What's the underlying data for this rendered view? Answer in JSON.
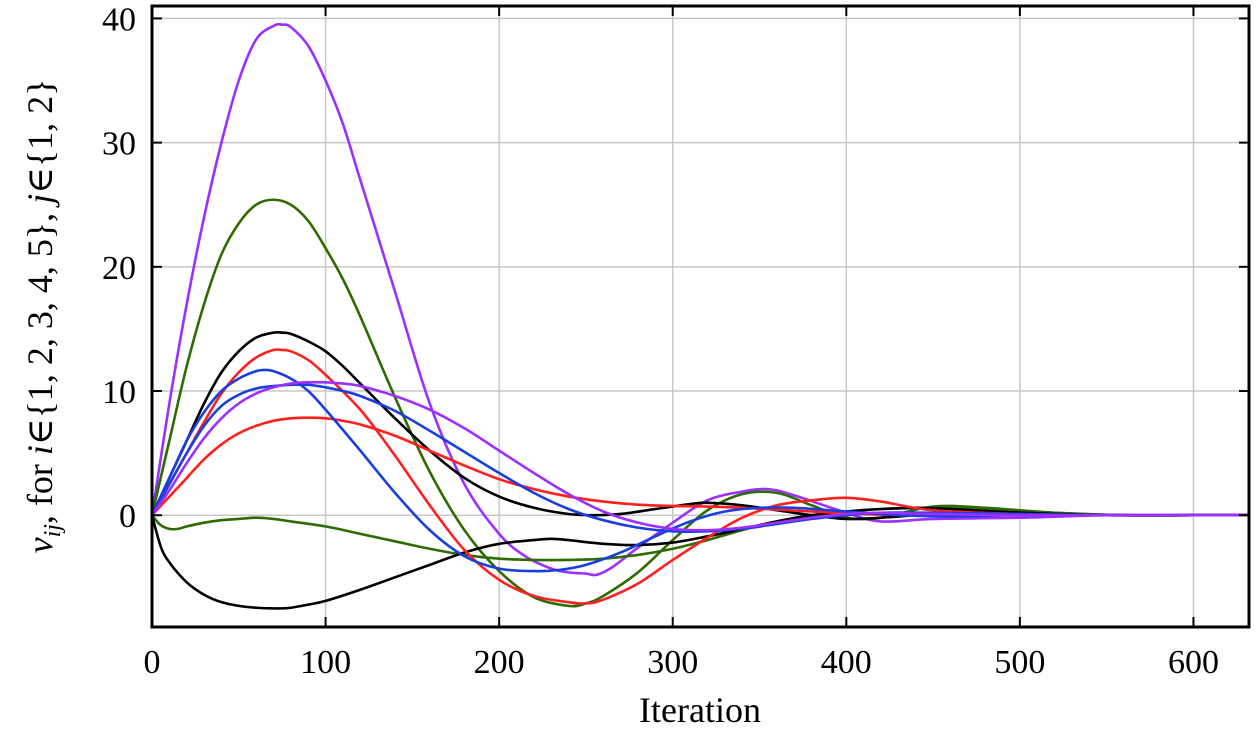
{
  "chart_data": {
    "type": "line",
    "xlabel": "Iteration",
    "ylabel_parts": {
      "v": "v",
      "sub": "ij",
      "text1": ", for ",
      "i": "i",
      "text2": "∈{1, 2, 3, 4, 5}, ",
      "j": "j",
      "text3": "∈{1, 2}"
    },
    "xlim": [
      0,
      632
    ],
    "ylim": [
      -9,
      41
    ],
    "xticks": [
      0,
      100,
      200,
      300,
      400,
      500,
      600
    ],
    "yticks": [
      0,
      10,
      20,
      30,
      40
    ],
    "grid": true,
    "series": [
      {
        "color": "#9b30ff",
        "x": [
          0,
          10,
          20,
          30,
          40,
          50,
          60,
          70,
          75,
          80,
          90,
          100,
          110,
          120,
          140,
          160,
          180,
          200,
          215,
          230,
          240,
          250,
          256,
          265,
          280,
          300,
          320,
          340,
          355,
          370,
          400,
          420,
          450,
          500,
          550,
          600,
          632
        ],
        "y": [
          0,
          9,
          17,
          24,
          30,
          35,
          38.3,
          39.4,
          39.5,
          39.3,
          37.8,
          35,
          31.5,
          27,
          18,
          9,
          2.5,
          -1.5,
          -3.3,
          -4.3,
          -4.6,
          -4.7,
          -4.8,
          -4.2,
          -2.6,
          -0.6,
          1.2,
          1.9,
          2.1,
          1.6,
          0.2,
          -0.5,
          -0.3,
          -0.2,
          0,
          0,
          0
        ]
      },
      {
        "color": "#2e6b00",
        "x": [
          0,
          10,
          20,
          30,
          40,
          50,
          60,
          70,
          80,
          90,
          100,
          110,
          120,
          140,
          160,
          180,
          200,
          220,
          240,
          250,
          260,
          280,
          300,
          320,
          340,
          360,
          380,
          400,
          420,
          450,
          480,
          520,
          560,
          600,
          632
        ],
        "y": [
          0,
          6,
          12,
          17,
          21,
          23.5,
          25,
          25.4,
          25,
          23.7,
          21.5,
          19,
          16,
          9.5,
          3.5,
          -1.2,
          -4.5,
          -6.6,
          -7.3,
          -7.1,
          -6.5,
          -4.6,
          -2,
          0.4,
          1.7,
          1.8,
          0.8,
          -0.2,
          -0.2,
          0.7,
          0.6,
          0.2,
          0,
          0,
          0
        ]
      },
      {
        "color": "#2e6b00",
        "x": [
          0,
          5,
          10,
          15,
          20,
          30,
          40,
          50,
          60,
          70,
          80,
          100,
          120,
          140,
          160,
          180,
          200,
          220,
          240,
          260,
          280,
          300,
          320,
          340,
          360,
          380,
          400,
          420,
          450,
          480,
          520,
          560,
          600,
          632
        ],
        "y": [
          0,
          -0.8,
          -1.1,
          -1.1,
          -0.9,
          -0.6,
          -0.4,
          -0.3,
          -0.2,
          -0.3,
          -0.5,
          -0.9,
          -1.5,
          -2.1,
          -2.7,
          -3.2,
          -3.5,
          -3.6,
          -3.6,
          -3.5,
          -3.2,
          -2.7,
          -2,
          -1.2,
          -0.5,
          0,
          0.3,
          0.5,
          0.6,
          0.5,
          0.2,
          0,
          0,
          0
        ]
      },
      {
        "color": "#000000",
        "x": [
          0,
          10,
          20,
          30,
          40,
          50,
          60,
          70,
          75,
          80,
          90,
          100,
          110,
          120,
          140,
          160,
          180,
          200,
          220,
          240,
          255,
          270,
          290,
          310,
          320,
          340,
          360,
          380,
          400,
          420,
          450,
          480,
          520,
          560,
          600,
          632
        ],
        "y": [
          0,
          3,
          6,
          9,
          11.5,
          13.2,
          14.3,
          14.7,
          14.7,
          14.6,
          14,
          13.2,
          12,
          10.6,
          7.8,
          5.2,
          3,
          1.5,
          0.6,
          0.1,
          0,
          0.1,
          0.5,
          0.9,
          1,
          0.8,
          0.4,
          0,
          -0.3,
          -0.2,
          0.1,
          0.3,
          0.1,
          0,
          0,
          0
        ]
      },
      {
        "color": "#000000",
        "x": [
          0,
          5,
          10,
          20,
          30,
          40,
          50,
          60,
          70,
          75,
          80,
          90,
          100,
          120,
          140,
          160,
          180,
          200,
          220,
          230,
          240,
          260,
          280,
          300,
          320,
          340,
          360,
          380,
          400,
          420,
          440,
          460,
          500,
          550,
          600,
          632
        ],
        "y": [
          0,
          -2.5,
          -3.8,
          -5.4,
          -6.4,
          -7,
          -7.3,
          -7.45,
          -7.5,
          -7.5,
          -7.45,
          -7.2,
          -6.9,
          -6,
          -5,
          -4,
          -3,
          -2.3,
          -2,
          -1.9,
          -2,
          -2.3,
          -2.4,
          -2.2,
          -1.7,
          -1.1,
          -0.5,
          0,
          0.3,
          0.5,
          0.6,
          0.5,
          0.2,
          0,
          0,
          0
        ]
      },
      {
        "color": "#ff1f1f",
        "x": [
          0,
          10,
          20,
          30,
          40,
          50,
          60,
          70,
          75,
          80,
          90,
          100,
          120,
          140,
          160,
          180,
          200,
          220,
          240,
          250,
          260,
          280,
          300,
          320,
          340,
          360,
          380,
          400,
          420,
          450,
          500,
          550,
          600,
          632
        ],
        "y": [
          0,
          2.5,
          5,
          7.5,
          9.8,
          11.5,
          12.7,
          13.3,
          13.3,
          13.2,
          12.5,
          11.3,
          8.5,
          4.8,
          0.8,
          -2.8,
          -5.2,
          -6.5,
          -7,
          -7.1,
          -6.8,
          -5.5,
          -3.6,
          -1.8,
          -0.2,
          0.8,
          1.2,
          1.4,
          1.1,
          0.4,
          0.1,
          0,
          0,
          0
        ]
      },
      {
        "color": "#ff1f1f",
        "x": [
          0,
          10,
          20,
          30,
          40,
          50,
          60,
          70,
          80,
          90,
          100,
          110,
          120,
          140,
          160,
          180,
          200,
          220,
          240,
          260,
          280,
          300,
          320,
          340,
          360,
          380,
          400,
          420,
          450,
          500,
          550,
          600,
          632
        ],
        "y": [
          0,
          1.5,
          3,
          4.5,
          5.7,
          6.6,
          7.2,
          7.6,
          7.8,
          7.85,
          7.8,
          7.6,
          7.3,
          6.4,
          5.2,
          4,
          2.9,
          2.1,
          1.5,
          1.1,
          0.85,
          0.75,
          0.7,
          0.6,
          0.45,
          0.3,
          0.15,
          0.05,
          0,
          0,
          0,
          0,
          0
        ]
      },
      {
        "color": "#1a3fe0",
        "x": [
          0,
          10,
          20,
          30,
          40,
          50,
          60,
          65,
          70,
          80,
          90,
          100,
          120,
          140,
          160,
          180,
          200,
          220,
          235,
          250,
          270,
          290,
          310,
          330,
          350,
          370,
          390,
          410,
          430,
          460,
          500,
          550,
          600,
          632
        ],
        "y": [
          0,
          3,
          6,
          8.3,
          10,
          11,
          11.6,
          11.7,
          11.6,
          11,
          10,
          8.5,
          5.2,
          1.8,
          -1.2,
          -3.3,
          -4.3,
          -4.5,
          -4.4,
          -4,
          -3,
          -1.7,
          -0.5,
          0.3,
          0.6,
          0.6,
          0.4,
          0.2,
          0,
          -0.1,
          0,
          0,
          0,
          0
        ]
      },
      {
        "color": "#1a3fe0",
        "x": [
          0,
          10,
          20,
          30,
          40,
          50,
          60,
          70,
          80,
          90,
          100,
          110,
          120,
          140,
          160,
          180,
          200,
          220,
          240,
          260,
          280,
          300,
          320,
          340,
          360,
          380,
          400,
          420,
          450,
          500,
          550,
          600,
          632
        ],
        "y": [
          0,
          2.5,
          5,
          7.2,
          8.8,
          9.7,
          10.2,
          10.4,
          10.5,
          10.5,
          10.3,
          10,
          9.6,
          8.4,
          6.8,
          5.1,
          3.4,
          1.8,
          0.5,
          -0.4,
          -1,
          -1.3,
          -1.3,
          -1.1,
          -0.7,
          -0.3,
          0,
          0.2,
          0.2,
          0.1,
          0,
          0,
          0
        ]
      },
      {
        "color": "#9b30ff",
        "x": [
          0,
          10,
          20,
          30,
          40,
          50,
          60,
          70,
          80,
          90,
          100,
          110,
          120,
          140,
          160,
          180,
          200,
          220,
          240,
          260,
          280,
          300,
          320,
          340,
          360,
          380,
          400,
          420,
          450,
          500,
          550,
          600,
          632
        ],
        "y": [
          0,
          2,
          4.2,
          6.2,
          7.8,
          9,
          9.8,
          10.3,
          10.6,
          10.7,
          10.7,
          10.6,
          10.4,
          9.6,
          8.5,
          7,
          5.2,
          3.4,
          1.7,
          0.3,
          -0.6,
          -1.1,
          -1.2,
          -1,
          -0.6,
          -0.2,
          0.1,
          0.2,
          0.1,
          0,
          0,
          0,
          0
        ]
      }
    ]
  }
}
